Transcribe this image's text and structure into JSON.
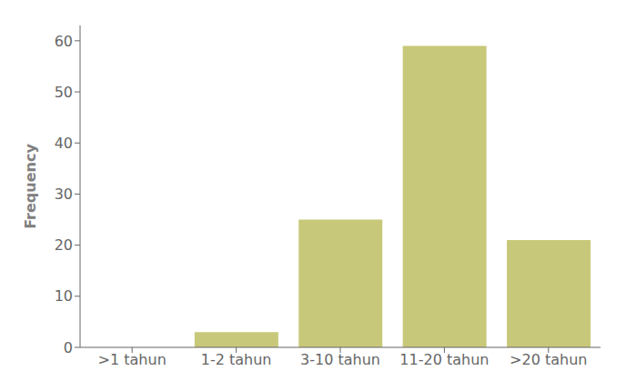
{
  "chart_data": {
    "type": "bar",
    "ylabel": "Frequency",
    "categories": [
      ">1 tahun",
      "1-2 tahun",
      "3-10 tahun",
      "11-20 tahun",
      ">20 tahun"
    ],
    "values": [
      0,
      3,
      25,
      59,
      21
    ],
    "color": "#C8C87A",
    "ylim": [
      0,
      63
    ],
    "yticks": [
      0,
      10,
      20,
      30,
      40,
      50,
      60
    ],
    "grid": false
  }
}
